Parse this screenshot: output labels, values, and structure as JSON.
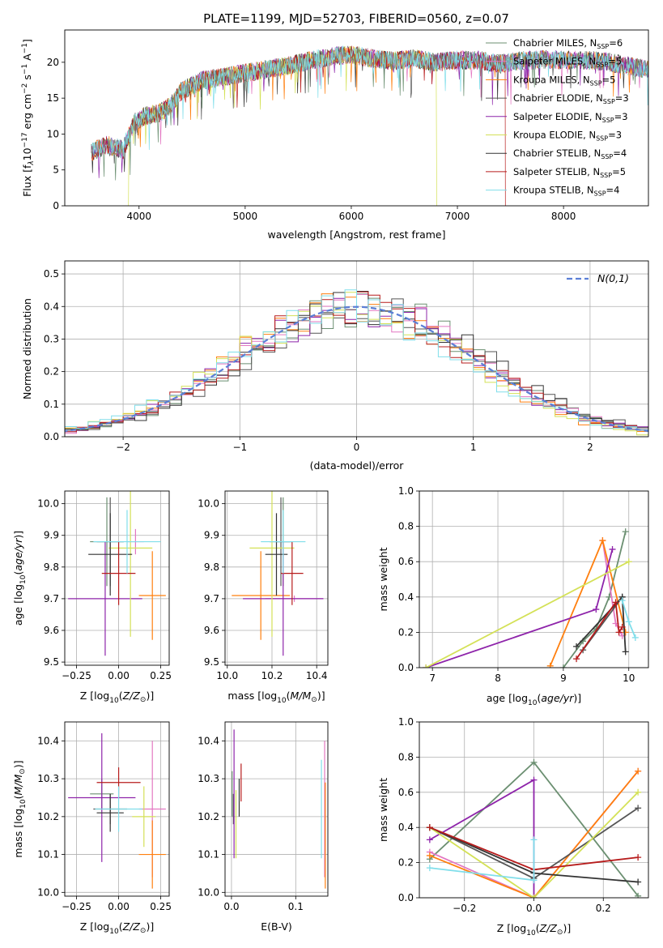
{
  "title": "PLATE=1199, MJD=52703, FIBERID=0560, z=0.07",
  "colors": [
    "#6b8f71",
    "#e377c2",
    "#ff7f0e",
    "#555555",
    "#8e24aa",
    "#d4e157",
    "#333333",
    "#b71c1c",
    "#80deea"
  ],
  "models": [
    "Chabrier MILES",
    "Salpeter MILES",
    "Kroupa MILES",
    "Chabrier ELODIE",
    "Salpeter ELODIE",
    "Kroupa ELODIE",
    "Chabrier STELIB",
    "Salpeter STELIB",
    "Kroupa STELIB"
  ],
  "nssp": [
    6,
    5,
    5,
    3,
    3,
    3,
    4,
    5,
    4
  ],
  "chart_data": [
    {
      "type": "line",
      "id": "spectrum",
      "xlabel": "wavelength [Angstrom, rest frame]",
      "ylabel_parts": [
        "Flux [f",
        "λ",
        "10",
        "−17",
        " erg cm",
        "−2",
        " s",
        "−1",
        " A",
        "−1",
        "]"
      ],
      "xlim": [
        3300,
        8800
      ],
      "ylim": [
        0,
        24.5
      ],
      "xticks": [
        4000,
        5000,
        6000,
        7000,
        8000
      ],
      "yticks": [
        0,
        5,
        10,
        15,
        20
      ],
      "legend_labels": [
        "Chabrier MILES, N",
        "Salpeter MILES, N",
        "Kroupa MILES, N",
        "Chabrier ELODIE, N",
        "Salpeter ELODIE, N",
        "Kroupa ELODIE, N",
        "Chabrier STELIB, N",
        "Salpeter STELIB, N",
        "Kroupa STELIB, N"
      ],
      "legend_sub": "SSP",
      "legend_placement": "right",
      "continuum": [
        [
          3550,
          7.5
        ],
        [
          3700,
          8.5
        ],
        [
          3850,
          7.8
        ],
        [
          3950,
          11.5
        ],
        [
          4050,
          12.5
        ],
        [
          4200,
          13
        ],
        [
          4300,
          14
        ],
        [
          4400,
          16
        ],
        [
          4600,
          17.5
        ],
        [
          4800,
          18
        ],
        [
          5000,
          18.5
        ],
        [
          5200,
          19
        ],
        [
          5400,
          19.5
        ],
        [
          5600,
          20.2
        ],
        [
          5800,
          20.8
        ],
        [
          6000,
          21.1
        ],
        [
          6200,
          20.5
        ],
        [
          6400,
          20.2
        ],
        [
          6600,
          20.5
        ],
        [
          6800,
          20
        ],
        [
          7000,
          20.3
        ],
        [
          7200,
          20.3
        ],
        [
          7400,
          19.8
        ],
        [
          7600,
          20.2
        ],
        [
          7800,
          20.4
        ],
        [
          8000,
          20.3
        ],
        [
          8200,
          20.3
        ],
        [
          8400,
          20.1
        ],
        [
          8600,
          19.5
        ],
        [
          8800,
          19
        ]
      ],
      "kroupa_elodie_range": [
        3900,
        6800
      ],
      "salpeter_stelib_end": 7450
    },
    {
      "type": "bar",
      "id": "residuals",
      "xlabel": "(data-model)/error",
      "ylabel": "Normed distribution",
      "xlim": [
        -2.5,
        2.5
      ],
      "ylim": [
        0,
        0.54
      ],
      "xticks": [
        -2,
        -1,
        0,
        1,
        2
      ],
      "xtick_labels": [
        "−2",
        "−1",
        "0",
        "1",
        "2"
      ],
      "yticks": [
        0,
        0.1,
        0.2,
        0.3,
        0.4,
        0.5
      ],
      "ytick_labels": [
        "0.0",
        "0.1",
        "0.2",
        "0.3",
        "0.4",
        "0.5"
      ],
      "legend": "N(0,1)",
      "gaussian": {
        "mu": 0,
        "sigma": 1,
        "color": "#5b7fd6"
      }
    },
    {
      "type": "scatter",
      "id": "z-age",
      "xlabel": "Z [log10(Z/Z⊙)]",
      "ylabel": "age  [log10(age/yr)]",
      "xlim": [
        -0.32,
        0.3
      ],
      "ylim": [
        9.49,
        10.04
      ],
      "xticks": [
        -0.25,
        0,
        0.25
      ],
      "xtick_labels": [
        "−0.25",
        "0.00",
        "0.25"
      ],
      "yticks": [
        9.5,
        9.6,
        9.7,
        9.8,
        9.9,
        10.0
      ],
      "ytick_labels": [
        "9.5",
        "9.6",
        "9.7",
        "9.8",
        "9.9",
        "10.0"
      ],
      "points": [
        {
          "x": -0.07,
          "xe": 0.1,
          "y": 9.88,
          "ye": 0.14,
          "c": 0
        },
        {
          "x": 0.1,
          "xe": 0.05,
          "y": 9.88,
          "ye": 0.04,
          "c": 1
        },
        {
          "x": 0.2,
          "xe": 0.08,
          "y": 9.71,
          "ye": 0.14,
          "c": 2
        },
        {
          "x": -0.05,
          "xe": 0.08,
          "y": 9.88,
          "ye": 0.14,
          "c": 3
        },
        {
          "x": -0.08,
          "xe": 0.22,
          "y": 9.7,
          "ye": 0.18,
          "c": 4
        },
        {
          "x": 0.07,
          "xe": 0.13,
          "y": 9.86,
          "ye": 0.28,
          "c": 5
        },
        {
          "x": -0.05,
          "xe": 0.13,
          "y": 9.84,
          "ye": 0.13,
          "c": 6
        },
        {
          "x": 0.0,
          "xe": 0.1,
          "y": 9.78,
          "ye": 0.1,
          "c": 7
        },
        {
          "x": 0.05,
          "xe": 0.2,
          "y": 9.88,
          "ye": 0.1,
          "c": 8
        }
      ]
    },
    {
      "type": "scatter",
      "id": "mass-age",
      "xlabel": "mass [log10(M/M⊙)]",
      "ylabel": "",
      "xlim": [
        9.99,
        10.45
      ],
      "ylim": [
        9.49,
        10.04
      ],
      "xticks": [
        10.0,
        10.2,
        10.4
      ],
      "xtick_labels": [
        "10.0",
        "10.2",
        "10.4"
      ],
      "yticks": [
        9.5,
        9.6,
        9.7,
        9.8,
        9.9,
        10.0
      ],
      "ytick_labels": [
        "9.5",
        "9.6",
        "9.7",
        "9.8",
        "9.9",
        "10.0"
      ],
      "points": [
        {
          "x": 10.25,
          "xe": 0.03,
          "y": 9.88,
          "ye": 0.14,
          "c": 0
        },
        {
          "x": 10.3,
          "xe": 0.13,
          "y": 9.7,
          "ye": 0.01,
          "c": 1
        },
        {
          "x": 10.15,
          "xe": 0.13,
          "y": 9.71,
          "ye": 0.14,
          "c": 2
        },
        {
          "x": 10.24,
          "xe": 0.05,
          "y": 9.88,
          "ye": 0.14,
          "c": 3
        },
        {
          "x": 10.25,
          "xe": 0.18,
          "y": 9.7,
          "ye": 0.18,
          "c": 4
        },
        {
          "x": 10.2,
          "xe": 0.1,
          "y": 9.86,
          "ye": 0.28,
          "c": 5
        },
        {
          "x": 10.22,
          "xe": 0.05,
          "y": 9.84,
          "ye": 0.13,
          "c": 6
        },
        {
          "x": 10.29,
          "xe": 0.05,
          "y": 9.78,
          "ye": 0.1,
          "c": 7
        },
        {
          "x": 10.25,
          "xe": 0.1,
          "y": 9.88,
          "ye": 0.1,
          "c": 8
        }
      ]
    },
    {
      "type": "line",
      "id": "ageweights",
      "xlabel": "age  [log10(age/yr)]",
      "ylabel": "mass weight",
      "xlim": [
        6.8,
        10.3
      ],
      "ylim": [
        0,
        1.0
      ],
      "xticks": [
        7,
        8,
        9,
        10
      ],
      "xtick_labels": [
        "7",
        "8",
        "9",
        "10"
      ],
      "yticks": [
        0,
        0.2,
        0.4,
        0.6,
        0.8,
        1.0
      ],
      "ytick_labels": [
        "0.0",
        "0.2",
        "0.4",
        "0.6",
        "0.8",
        "1.0"
      ],
      "series": [
        {
          "c": 0,
          "x": [
            9.0,
            9.3,
            9.5,
            9.7,
            9.95
          ],
          "y": [
            0.0,
            0.15,
            0.22,
            0.4,
            0.77
          ]
        },
        {
          "c": 1,
          "x": [
            9.6,
            9.8,
            9.9
          ],
          "y": [
            0.72,
            0.25,
            0.18
          ]
        },
        {
          "c": 2,
          "x": [
            8.8,
            9.6,
            9.95
          ],
          "y": [
            0.01,
            0.72,
            0.2
          ]
        },
        {
          "c": 3,
          "x": [
            9.3,
            9.9
          ],
          "y": [
            0.1,
            0.4
          ]
        },
        {
          "c": 4,
          "x": [
            6.9,
            9.5,
            9.75
          ],
          "y": [
            0.0,
            0.33,
            0.67
          ]
        },
        {
          "c": 5,
          "x": [
            6.9,
            10.0
          ],
          "y": [
            0.0,
            0.6
          ]
        },
        {
          "c": 6,
          "x": [
            9.2,
            9.9,
            9.95
          ],
          "y": [
            0.12,
            0.4,
            0.09
          ]
        },
        {
          "c": 7,
          "x": [
            9.2,
            9.8,
            9.85,
            9.9
          ],
          "y": [
            0.05,
            0.37,
            0.2,
            0.23
          ]
        },
        {
          "c": 8,
          "x": [
            9.9,
            10.0,
            10.1
          ],
          "y": [
            0.38,
            0.26,
            0.17
          ]
        }
      ]
    },
    {
      "type": "scatter",
      "id": "z-mass",
      "xlabel": "Z [log10(Z/Z⊙)]",
      "ylabel": "mass [log10(M/M⊙)]",
      "xlim": [
        -0.32,
        0.3
      ],
      "ylim": [
        9.99,
        10.45
      ],
      "xticks": [
        -0.25,
        0,
        0.25
      ],
      "xtick_labels": [
        "−0.25",
        "0.00",
        "0.25"
      ],
      "yticks": [
        10.0,
        10.1,
        10.2,
        10.3,
        10.4
      ],
      "ytick_labels": [
        "10.0",
        "10.1",
        "10.2",
        "10.3",
        "10.4"
      ],
      "points": [
        {
          "x": -0.1,
          "xe": 0.07,
          "y": 10.26,
          "ye": 0.04,
          "c": 0
        },
        {
          "x": 0.2,
          "xe": 0.08,
          "y": 10.22,
          "ye": 0.18,
          "c": 1
        },
        {
          "x": 0.2,
          "xe": 0.08,
          "y": 10.1,
          "ye": 0.09,
          "c": 2
        },
        {
          "x": -0.05,
          "xe": 0.1,
          "y": 10.22,
          "ye": 0.04,
          "c": 3
        },
        {
          "x": -0.1,
          "xe": 0.2,
          "y": 10.25,
          "ye": 0.17,
          "c": 4
        },
        {
          "x": 0.15,
          "xe": 0.07,
          "y": 10.2,
          "ye": 0.08,
          "c": 5
        },
        {
          "x": -0.05,
          "xe": 0.08,
          "y": 10.21,
          "ye": 0.05,
          "c": 6
        },
        {
          "x": 0.0,
          "xe": 0.13,
          "y": 10.29,
          "ye": 0.04,
          "c": 7
        },
        {
          "x": 0.0,
          "xe": 0.14,
          "y": 10.22,
          "ye": 0.06,
          "c": 8
        }
      ]
    },
    {
      "type": "scatter",
      "id": "ebv-mass",
      "xlabel": "E(B-V)",
      "ylabel": "",
      "xlim": [
        -0.01,
        0.15
      ],
      "ylim": [
        9.99,
        10.45
      ],
      "xticks": [
        0.0,
        0.1
      ],
      "xtick_labels": [
        "0.0",
        "0.1"
      ],
      "yticks": [
        10.0,
        10.1,
        10.2,
        10.3,
        10.4
      ],
      "ytick_labels": [
        "10.0",
        "10.1",
        "10.2",
        "10.3",
        "10.4"
      ],
      "points": [
        {
          "x": 0.001,
          "ye": 0.06,
          "y": 10.26,
          "c": 0
        },
        {
          "x": 0.145,
          "ye": 0.18,
          "y": 10.22,
          "c": 1
        },
        {
          "x": 0.146,
          "ye": 0.14,
          "y": 10.15,
          "c": 2
        },
        {
          "x": 0.003,
          "ye": 0.04,
          "y": 10.22,
          "c": 3
        },
        {
          "x": 0.004,
          "ye": 0.17,
          "y": 10.26,
          "c": 4
        },
        {
          "x": 0.007,
          "ye": 0.09,
          "y": 10.18,
          "c": 5
        },
        {
          "x": 0.012,
          "ye": 0.05,
          "y": 10.25,
          "c": 6
        },
        {
          "x": 0.015,
          "ye": 0.05,
          "y": 10.29,
          "c": 7
        },
        {
          "x": 0.14,
          "ye": 0.13,
          "y": 10.22,
          "c": 8
        }
      ]
    },
    {
      "type": "line",
      "id": "zweights",
      "xlabel": "Z [log10(Z/Z⊙)]",
      "ylabel": "mass weight",
      "xlim": [
        -0.33,
        0.33
      ],
      "ylim": [
        0,
        1.0
      ],
      "xticks": [
        -0.2,
        0,
        0.2
      ],
      "xtick_labels": [
        "−0.2",
        "0.0",
        "0.2"
      ],
      "yticks": [
        0,
        0.2,
        0.4,
        0.6,
        0.8,
        1.0
      ],
      "ytick_labels": [
        "0.0",
        "0.2",
        "0.4",
        "0.6",
        "0.8",
        "1.0"
      ],
      "series": [
        {
          "c": 0,
          "x": [
            -0.3,
            0,
            0.3
          ],
          "y": [
            0.22,
            0.77,
            0.01
          ]
        },
        {
          "c": 1,
          "x": [
            -0.3,
            0,
            0.3
          ],
          "y": [
            0.26,
            0.0,
            0.72
          ]
        },
        {
          "c": 2,
          "x": [
            -0.3,
            0,
            0.3
          ],
          "y": [
            0.24,
            0.0,
            0.72
          ]
        },
        {
          "c": 3,
          "x": [
            -0.3,
            0,
            0.3
          ],
          "y": [
            0.4,
            0.11,
            0.51
          ]
        },
        {
          "c": 4,
          "x": [
            -0.3,
            0,
            0
          ],
          "y": [
            0.33,
            0.67,
            0.0
          ]
        },
        {
          "c": 5,
          "x": [
            -0.3,
            0,
            0.3
          ],
          "y": [
            0.4,
            0.0,
            0.6
          ]
        },
        {
          "c": 6,
          "x": [
            -0.3,
            0,
            0.3
          ],
          "y": [
            0.4,
            0.14,
            0.09
          ]
        },
        {
          "c": 7,
          "x": [
            -0.3,
            0,
            0.3
          ],
          "y": [
            0.4,
            0.16,
            0.23
          ]
        },
        {
          "c": 8,
          "x": [
            -0.3,
            0,
            0
          ],
          "y": [
            0.17,
            0.1,
            0.33
          ]
        }
      ]
    }
  ]
}
